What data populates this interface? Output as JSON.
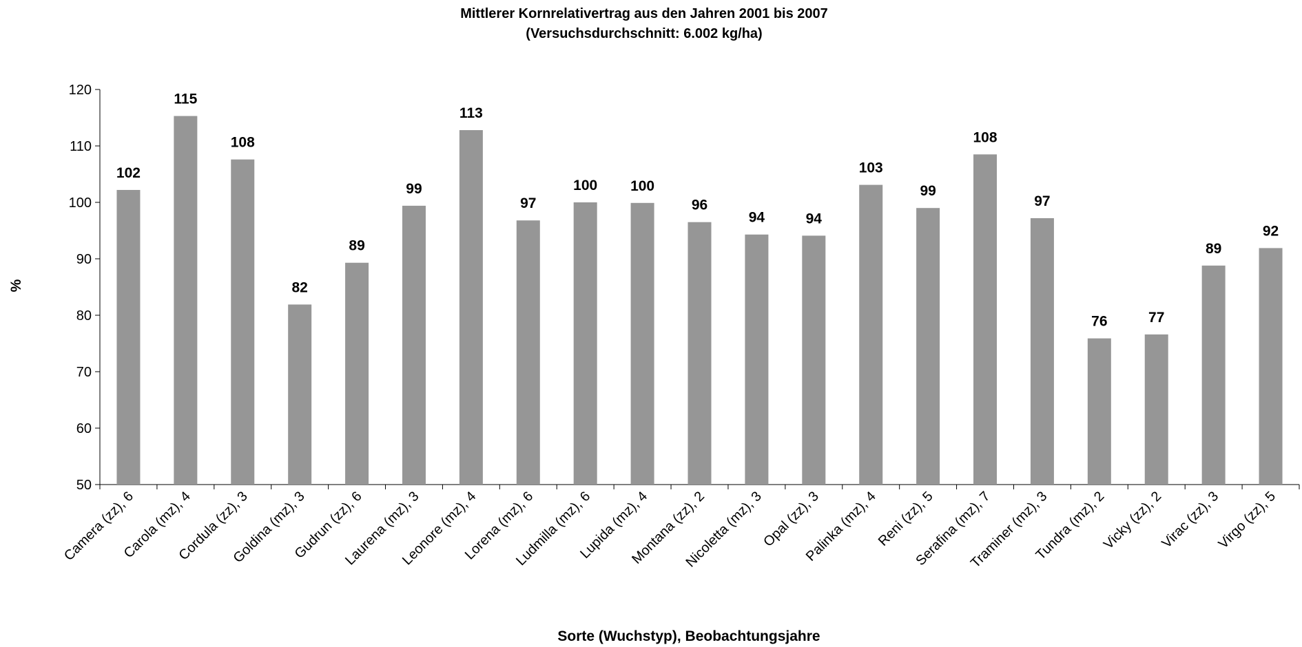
{
  "chart_data": {
    "type": "bar",
    "title": "Mittlerer Kornrelativertrag aus den Jahren 2001 bis 2007",
    "subtitle": "(Versuchsdurchschnitt: 6.002 kg/ha)",
    "x_label": "Sorte (Wuchstyp), Beobachtungsjahre",
    "y_label": "%",
    "categories": [
      "Camera (zz), 6",
      "Carola (mz), 4",
      "Cordula (zz), 3",
      "Goldina (mz), 3",
      "Gudrun (zz), 6",
      "Laurena (mz), 3",
      "Leonore (mz), 4",
      "Lorena (mz), 6",
      "Ludmilla (mz), 6",
      "Lupida (mz), 4",
      "Montana (zz), 2",
      "Nicoletta (mz), 3",
      "Opal (zz), 3",
      "Palinka (mz), 4",
      "Reni (zz), 5",
      "Serafina (mz), 7",
      "Traminer (mz), 3",
      "Tundra (mz), 2",
      "Vicky (zz), 2",
      "Virac (zz), 3",
      "Virgo (zz), 5"
    ],
    "values": [
      102.2,
      115.3,
      107.6,
      81.9,
      89.3,
      99.4,
      112.8,
      96.8,
      100.0,
      99.9,
      96.5,
      94.3,
      94.1,
      103.1,
      99.0,
      108.5,
      97.2,
      75.9,
      76.6,
      88.8,
      91.9
    ],
    "value_labels": [
      "102",
      "115",
      "108",
      "82",
      "89",
      "99",
      "113",
      "97",
      "100",
      "100",
      "96",
      "94",
      "94",
      "103",
      "99",
      "108",
      "97",
      "76",
      "77",
      "89",
      "92"
    ],
    "color": "#969696",
    "ylim": [
      50,
      120
    ],
    "yticks": [
      50,
      60,
      70,
      80,
      90,
      100,
      110,
      120
    ],
    "grid": false
  }
}
